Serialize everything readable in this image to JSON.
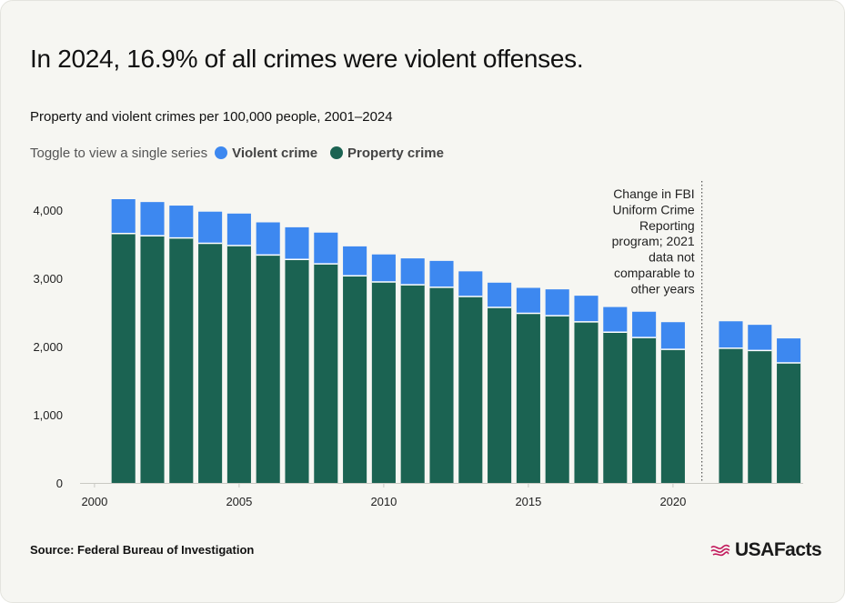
{
  "headline": "In 2024, 16.9% of all crimes were violent offenses.",
  "subtitle": "Property and violent crimes per 100,000 people, 2001–2024",
  "legend": {
    "hint": "Toggle to view a single series",
    "violent_label": "Violent crime",
    "property_label": "Property crime"
  },
  "colors": {
    "violent": "#3d88f0",
    "property": "#1b6352",
    "background": "#f6f6f2",
    "axis": "#c9c9c3"
  },
  "source": "Source: Federal Bureau of Investigation",
  "brand": {
    "name": "USAFacts",
    "icon": "us-flag-icon"
  },
  "chart_data": {
    "type": "bar",
    "stacked": true,
    "x": [
      2001,
      2002,
      2003,
      2004,
      2005,
      2006,
      2007,
      2008,
      2009,
      2010,
      2011,
      2012,
      2013,
      2014,
      2015,
      2016,
      2017,
      2018,
      2019,
      2020,
      2022,
      2023,
      2024
    ],
    "series": [
      {
        "name": "Property crime",
        "color": "#1b6352",
        "values": [
          3656,
          3624,
          3591,
          3514,
          3480,
          3341,
          3276,
          3212,
          3036,
          2946,
          2905,
          2868,
          2733,
          2574,
          2487,
          2451,
          2362,
          2210,
          2131,
          1958,
          1975,
          1941,
          1760
        ]
      },
      {
        "name": "Violent crime",
        "color": "#3d88f0",
        "values": [
          504,
          494,
          475,
          463,
          469,
          479,
          472,
          458,
          432,
          404,
          387,
          387,
          369,
          362,
          373,
          387,
          383,
          369,
          379,
          399,
          395,
          377,
          359
        ]
      }
    ],
    "xticks": [
      "2000",
      "2005",
      "2010",
      "2015",
      "2020"
    ],
    "xtick_values": [
      2000,
      2005,
      2010,
      2015,
      2020
    ],
    "yticks": [
      "0",
      "1,000",
      "2,000",
      "3,000",
      "4,000"
    ],
    "ytick_values": [
      0,
      1000,
      2000,
      3000,
      4000
    ],
    "ylim": [
      0,
      4400
    ],
    "xlim": [
      1999.5,
      2024.5
    ],
    "annotation": {
      "lines": [
        "Change in FBI",
        "Uniform Crime",
        "Reporting",
        "program; 2021",
        "data not",
        "comparable to",
        "other years"
      ],
      "x": 2021
    },
    "grid": false,
    "legend_position": "top-left"
  }
}
